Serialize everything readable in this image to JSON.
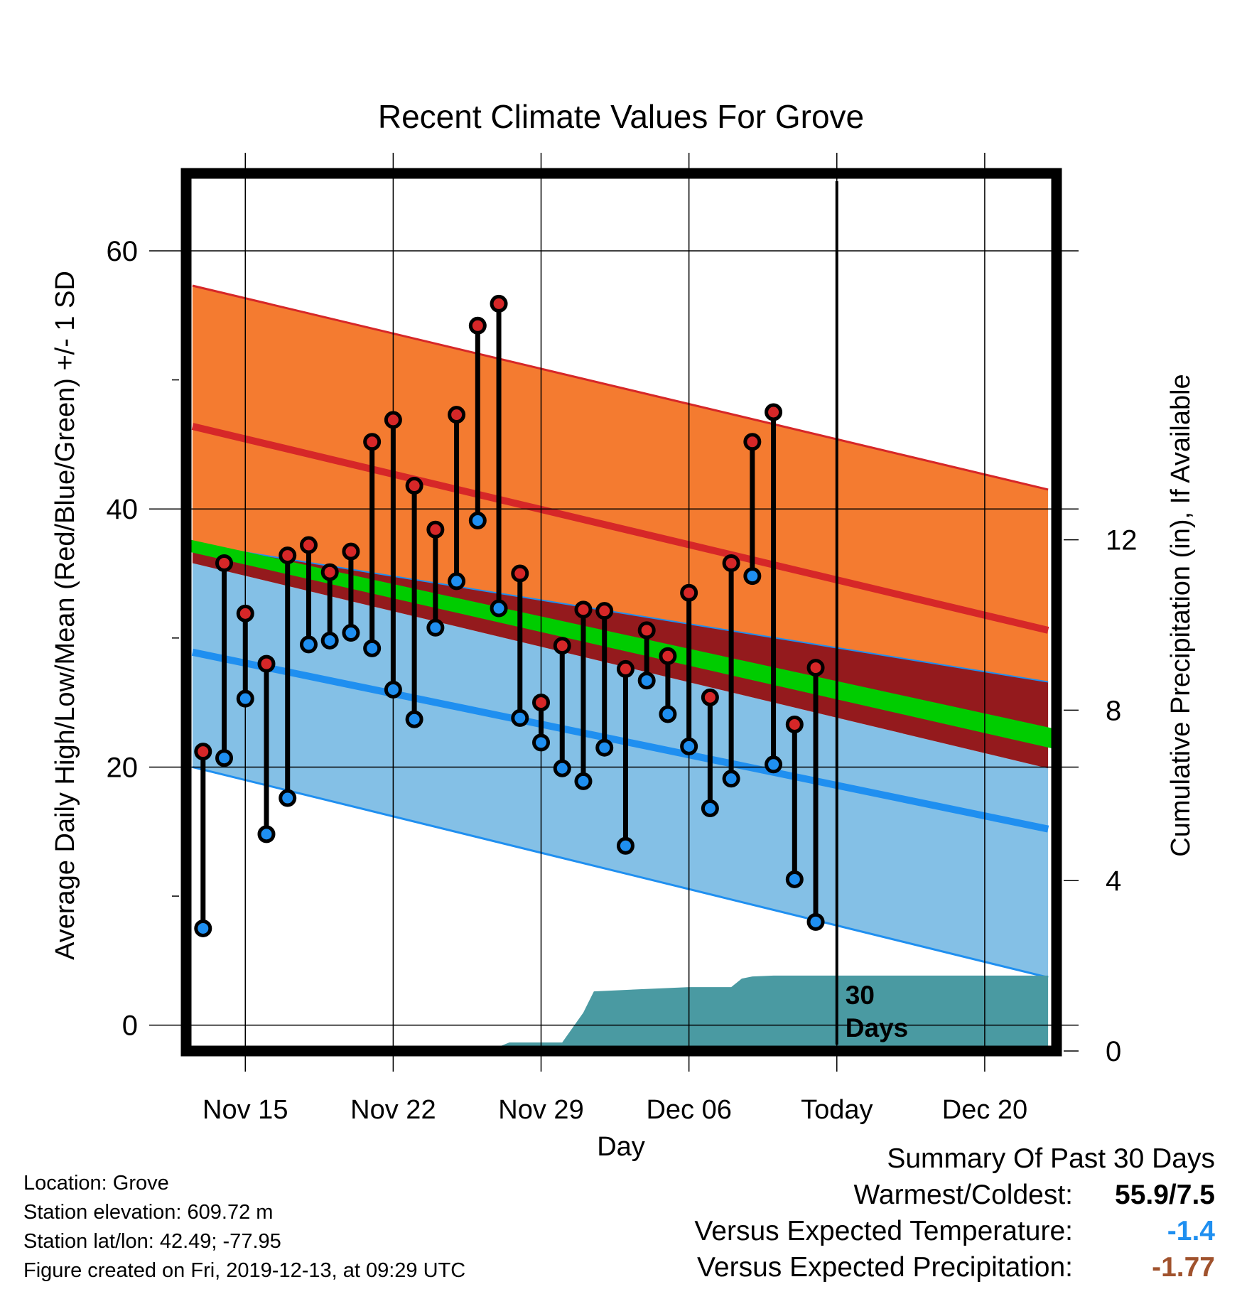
{
  "chart_data": {
    "type": "line",
    "title": "Recent Climate Values For Grove",
    "xlabel": "Day",
    "ylabel_left": "Average Daily High/Low/Mean (Red/Blue/Green) +/- 1 SD",
    "ylabel_right": "Cumulative Precipitation (in), If Available",
    "x_tick_labels": [
      {
        "day": 3,
        "label": "Nov 15"
      },
      {
        "day": 10,
        "label": "Nov 22"
      },
      {
        "day": 17,
        "label": "Nov 29"
      },
      {
        "day": 24,
        "label": "Dec 06"
      },
      {
        "day": 31,
        "label": "Today"
      },
      {
        "day": 38,
        "label": "Dec 20"
      }
    ],
    "left_axis": {
      "ylim": [
        -2,
        66
      ],
      "ticks": [
        0,
        20,
        40,
        60
      ],
      "minor_ticks": [
        10,
        30,
        50
      ]
    },
    "right_axis": {
      "ylim": [
        0,
        20.6
      ],
      "ticks": [
        0,
        4,
        8,
        12
      ]
    },
    "xlim": [
      0.2,
      41.4
    ],
    "today_day": 31,
    "today_text": "30\nDays",
    "normal_bands": {
      "days": [
        0.5,
        41
      ],
      "high_upper": [
        57.3,
        41.5
      ],
      "high_mean": [
        46.4,
        30.6
      ],
      "high_lower": [
        37.3,
        26.6
      ],
      "mean_upper": [
        37.3,
        22.8
      ],
      "mean_lower": [
        36.9,
        21.8
      ],
      "low_upper": [
        35.8,
        19.9
      ],
      "low_mean": [
        28.9,
        15.2
      ],
      "low_lower": [
        20.0,
        3.7
      ]
    },
    "series": [
      {
        "name": "High",
        "days": [
          1,
          2,
          3,
          4,
          5,
          6,
          7,
          8,
          9,
          10,
          11,
          12,
          13,
          14,
          15,
          16,
          17,
          18,
          19,
          20,
          21,
          22,
          23,
          24,
          25,
          26,
          27,
          28,
          29,
          30
        ],
        "values": [
          21.2,
          35.8,
          31.9,
          28.0,
          36.4,
          37.2,
          35.1,
          36.7,
          45.2,
          46.9,
          41.8,
          38.4,
          47.3,
          54.2,
          55.9,
          35.0,
          25.0,
          29.4,
          32.2,
          32.1,
          27.6,
          30.6,
          28.6,
          33.5,
          25.4,
          35.8,
          45.2,
          47.5,
          23.3,
          27.7
        ]
      },
      {
        "name": "Low",
        "days": [
          1,
          2,
          3,
          4,
          5,
          6,
          7,
          8,
          9,
          10,
          11,
          12,
          13,
          14,
          15,
          16,
          17,
          18,
          19,
          20,
          21,
          22,
          23,
          24,
          25,
          26,
          27,
          28,
          29,
          30
        ],
        "values": [
          7.5,
          20.7,
          25.3,
          14.8,
          17.6,
          29.5,
          29.8,
          30.4,
          29.2,
          26.0,
          23.7,
          30.8,
          34.4,
          39.1,
          32.3,
          23.8,
          21.9,
          19.9,
          18.9,
          21.5,
          13.9,
          26.7,
          24.1,
          21.6,
          16.8,
          19.1,
          34.8,
          20.2,
          11.3,
          8.0
        ]
      },
      {
        "name": "Cumulative Precipitation",
        "days": [
          14.5,
          15.5,
          17,
          18,
          19,
          19.5,
          24,
          26,
          26.5,
          27,
          28,
          31,
          41
        ],
        "values": [
          0,
          0.2,
          0.2,
          0.2,
          0.9,
          1.4,
          1.5,
          1.5,
          1.7,
          1.75,
          1.77,
          1.77,
          1.77
        ]
      }
    ]
  },
  "info": {
    "location": "Location: Grove",
    "elevation": "Station elevation: 609.72 m",
    "latlon": "Station lat/lon: 42.49; -77.95",
    "created": "Figure created on Fri, 2019-12-13, at 09:29 UTC"
  },
  "summary": {
    "heading": "Summary Of Past 30 Days",
    "warm_label": "Warmest/Coldest:",
    "warm_value": "55.9/7.5",
    "temp_label": "Versus Expected Temperature:",
    "temp_value": "-1.4",
    "precip_label": "Versus Expected Precipitation:",
    "precip_value": "-1.77"
  },
  "colors": {
    "high_band": "#f47b30",
    "high_mean": "#d62728",
    "mean_band": "#941a1d",
    "mean_line": "#00cc00",
    "low_band": "#84c0e6",
    "low_mean": "#1f8ff0",
    "precip": "#4a9aa2",
    "high_marker": "#d62728",
    "low_marker": "#1f8ff0",
    "temp_value": "#1f8ff0",
    "precip_value": "#a0522d"
  }
}
